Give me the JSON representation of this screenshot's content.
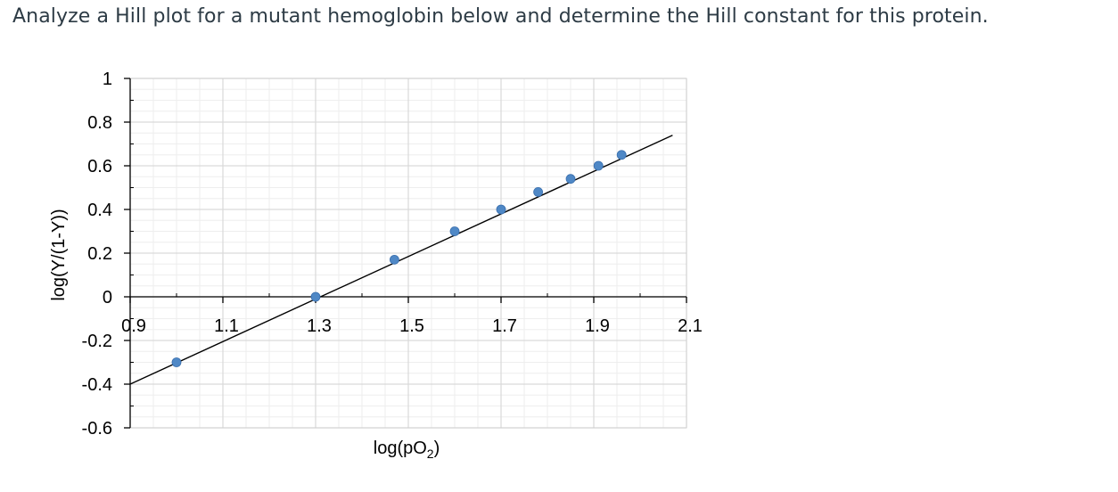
{
  "question": {
    "text": "Analyze a Hill plot for a mutant hemoglobin below and determine the Hill constant for this protein."
  },
  "chart_data": {
    "type": "scatter",
    "title": "",
    "xlabel": "log(pO",
    "xlabel_sub": "2",
    "xlabel_suffix": ")",
    "ylabel": "log(Y/(1-Y))",
    "xlim": [
      0.9,
      2.1
    ],
    "ylim": [
      -0.6,
      1.0
    ],
    "x_ticks": [
      0.9,
      1.1,
      1.3,
      1.5,
      1.7,
      1.9,
      2.1
    ],
    "x_tick_labels": [
      "0.9",
      "1.1",
      "1.3",
      "1.5",
      "1.7",
      "1.9",
      "2.1"
    ],
    "y_ticks": [
      -0.6,
      -0.4,
      -0.2,
      0,
      0.2,
      0.4,
      0.6,
      0.8,
      1.0
    ],
    "y_tick_labels": [
      "-0.6",
      "-0.4",
      "-0.2",
      "0",
      "0.2",
      "0.4",
      "0.6",
      "0.8",
      "1"
    ],
    "grid": true,
    "series": [
      {
        "x": [
          1.0,
          1.3,
          1.47,
          1.6,
          1.7,
          1.78,
          1.85,
          1.91,
          1.96
        ],
        "y": [
          -0.3,
          0.0,
          0.17,
          0.3,
          0.4,
          0.48,
          0.54,
          0.6,
          0.65
        ],
        "color": "#4f88c6"
      }
    ],
    "trendline": {
      "x": [
        0.9,
        2.07
      ],
      "y": [
        -0.4,
        0.74
      ],
      "color": "#000000"
    }
  }
}
